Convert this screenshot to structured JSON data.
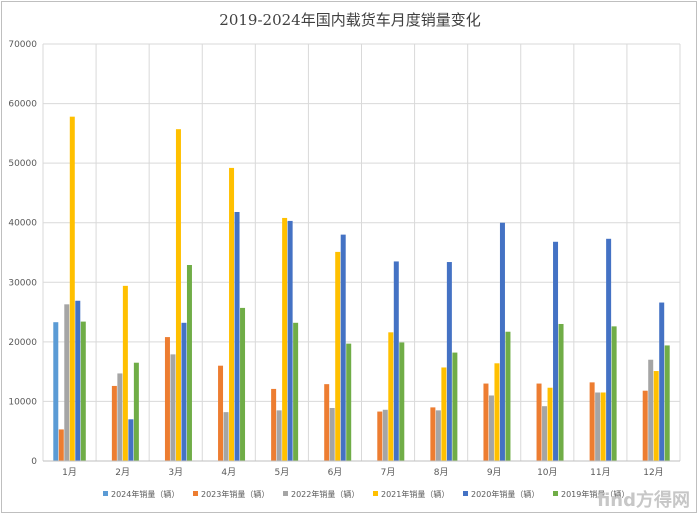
{
  "chart_data": {
    "type": "bar",
    "title": "2019-2024年国内载货车月度销量变化",
    "xlabel": "",
    "ylabel": "",
    "ylim": [
      0,
      70000
    ],
    "yticks": [
      0,
      10000,
      20000,
      30000,
      40000,
      50000,
      60000,
      70000
    ],
    "grid": true,
    "legend_position": "bottom",
    "categories": [
      "1月",
      "2月",
      "3月",
      "4月",
      "5月",
      "6月",
      "7月",
      "8月",
      "9月",
      "10月",
      "11月",
      "12月"
    ],
    "series": [
      {
        "name": "2024年销量（辆）",
        "color": "#5b9bd5",
        "values": [
          23300,
          null,
          null,
          null,
          null,
          null,
          null,
          null,
          null,
          null,
          null,
          null
        ]
      },
      {
        "name": "2023年销量（辆）",
        "color": "#ed7d31",
        "values": [
          5300,
          12600,
          20800,
          16000,
          12100,
          12900,
          8300,
          9000,
          13000,
          13000,
          13200,
          11800
        ]
      },
      {
        "name": "2022年销量（辆）",
        "color": "#a5a5a5",
        "values": [
          26300,
          14700,
          17900,
          8200,
          8500,
          8900,
          8600,
          8500,
          11000,
          9200,
          11500,
          17000
        ]
      },
      {
        "name": "2021年销量（辆）",
        "color": "#ffc000",
        "values": [
          57800,
          29400,
          55700,
          49200,
          40800,
          35100,
          21600,
          15700,
          16400,
          12300,
          11500,
          15100
        ]
      },
      {
        "name": "2020年销量（辆）",
        "color": "#4472c4",
        "values": [
          26900,
          7000,
          23200,
          41800,
          40300,
          38000,
          33500,
          33400,
          40000,
          36800,
          37300,
          26600
        ]
      },
      {
        "name": "2019年销量（辆）",
        "color": "#70ad47",
        "values": [
          23400,
          16500,
          32900,
          25700,
          23200,
          19700,
          19900,
          18200,
          21700,
          23000,
          22600,
          19400
        ]
      }
    ]
  },
  "watermark": {
    "text": "find方得网"
  }
}
